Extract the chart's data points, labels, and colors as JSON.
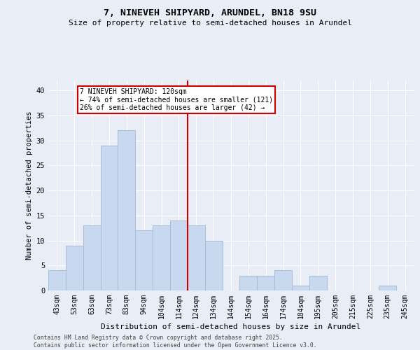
{
  "title1": "7, NINEVEH SHIPYARD, ARUNDEL, BN18 9SU",
  "title2": "Size of property relative to semi-detached houses in Arundel",
  "xlabel": "Distribution of semi-detached houses by size in Arundel",
  "ylabel": "Number of semi-detached properties",
  "categories": [
    "43sqm",
    "53sqm",
    "63sqm",
    "73sqm",
    "83sqm",
    "94sqm",
    "104sqm",
    "114sqm",
    "124sqm",
    "134sqm",
    "144sqm",
    "154sqm",
    "164sqm",
    "174sqm",
    "184sqm",
    "195sqm",
    "205sqm",
    "215sqm",
    "225sqm",
    "235sqm",
    "245sqm"
  ],
  "values": [
    4,
    9,
    13,
    29,
    32,
    12,
    13,
    14,
    13,
    10,
    0,
    3,
    3,
    4,
    1,
    3,
    0,
    0,
    0,
    1,
    0
  ],
  "bar_color": "#c8d8ee",
  "bar_edgecolor": "#a8bcd8",
  "vline_color": "#cc0000",
  "annotation_title": "7 NINEVEH SHIPYARD: 120sqm",
  "annotation_line1": "← 74% of semi-detached houses are smaller (121)",
  "annotation_line2": "26% of semi-detached houses are larger (42) →",
  "annotation_box_facecolor": "#ffffff",
  "annotation_box_edgecolor": "#cc0000",
  "ylim": [
    0,
    42
  ],
  "yticks": [
    0,
    5,
    10,
    15,
    20,
    25,
    30,
    35,
    40
  ],
  "footer1": "Contains HM Land Registry data © Crown copyright and database right 2025.",
  "footer2": "Contains public sector information licensed under the Open Government Licence v3.0.",
  "bg_color": "#e8edf6",
  "plot_bg_color": "#e8edf6"
}
